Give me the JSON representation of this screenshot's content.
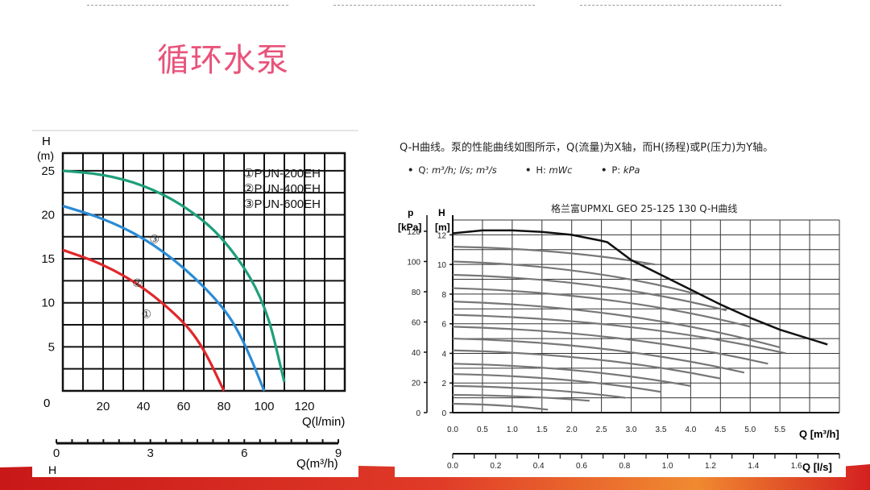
{
  "slide_title": "循环水泵",
  "colors": {
    "title": "#e8537a",
    "pun200": "#e0272b",
    "pun400": "#2a8bd5",
    "pun600": "#1e9f7a",
    "band": "#d32020"
  },
  "right_panel": {
    "intro": "Q-H曲线。泵的性能曲线如图所示，Q(流量)为X轴，而H(扬程)或P(压力)为Y轴。",
    "units": [
      {
        "label": "Q:",
        "value": "m³/h; l/s; m³/s"
      },
      {
        "label": "H:",
        "value": "mWc"
      },
      {
        "label": "P:",
        "value": "kPa"
      }
    ],
    "chart_title": "格兰富UPMXL GEO 25-125 130 Q-H曲线"
  },
  "chart_data": [
    {
      "type": "line",
      "ylabel": "H",
      "yunit": "(m)",
      "xlabel": "Q(l/min)",
      "xlabel2": "Q(m³/h)",
      "xlabel2_prefix": "H",
      "xlim": [
        0,
        140
      ],
      "ylim": [
        0,
        27
      ],
      "xticks": [
        20,
        40,
        60,
        80,
        100,
        120
      ],
      "yticks": [
        5,
        10,
        15,
        20,
        25
      ],
      "origin_label": "0",
      "x2ticks": [
        0,
        3,
        6,
        9
      ],
      "grid": true,
      "legend_position": "top-right",
      "series": [
        {
          "name": "①PUN-200EH",
          "marker": "①",
          "color_key": "pun200",
          "x": [
            0,
            20,
            40,
            60,
            70,
            80
          ],
          "y": [
            16,
            14.4,
            11.8,
            7.9,
            4.8,
            0
          ]
        },
        {
          "name": "②PUN-400EH",
          "marker": "②",
          "color_key": "pun400",
          "x": [
            0,
            20,
            40,
            60,
            80,
            90,
            100
          ],
          "y": [
            21,
            19.6,
            17.4,
            14.1,
            9.5,
            5.6,
            0
          ]
        },
        {
          "name": "③PUN-600EH",
          "marker": "③",
          "color_key": "pun600",
          "x": [
            0,
            20,
            40,
            60,
            80,
            100,
            110
          ],
          "y": [
            25,
            24.6,
            23.4,
            21.1,
            17.4,
            10.5,
            1
          ]
        }
      ]
    },
    {
      "type": "line",
      "ylabel_left": "p",
      "ylabel_left_unit": "[kPa]",
      "ylabel_right": "H",
      "ylabel_right_unit": "[m]",
      "xlabel": "Q [m³/h]",
      "xlabel2": "Q [l/s]",
      "xlim": [
        0,
        6.5
      ],
      "ylim": [
        0,
        13
      ],
      "xticks": [
        "0.0",
        "0.5",
        "1.0",
        "1.5",
        "2.0",
        "2.5",
        "3.0",
        "3.5",
        "4.0",
        "4.5",
        "5.0",
        "5.5"
      ],
      "p_ticks": [
        "0",
        "20",
        "40",
        "60",
        "80",
        "100",
        "120"
      ],
      "h_ticks": [
        "0",
        "2",
        "4",
        "6",
        "8",
        "10",
        "12"
      ],
      "x2ticks": [
        "0.0",
        "0.2",
        "0.4",
        "0.6",
        "0.8",
        "1.0",
        "1.2",
        "1.4",
        "1.6"
      ],
      "grid": true,
      "max_curve": {
        "x": [
          0,
          0.5,
          1.0,
          1.5,
          2.0,
          2.5,
          2.6,
          3.0,
          3.5,
          4.0,
          4.5,
          5.0,
          5.5,
          6.3
        ],
        "y": [
          12.1,
          12.3,
          12.3,
          12.2,
          12.0,
          11.6,
          11.5,
          10.3,
          9.3,
          8.3,
          7.3,
          6.4,
          5.6,
          4.6
        ]
      },
      "speed_curves": [
        {
          "start": 11.2,
          "end_x": 3.4,
          "end_y": 10.0
        },
        {
          "start": 10.2,
          "end_x": 4.1,
          "end_y": 8.0
        },
        {
          "start": 9.3,
          "end_x": 4.6,
          "end_y": 6.9
        },
        {
          "start": 8.4,
          "end_x": 5.0,
          "end_y": 5.8
        },
        {
          "start": 7.5,
          "end_x": 5.5,
          "end_y": 4.4
        },
        {
          "start": 6.6,
          "end_x": 5.6,
          "end_y": 4.0
        },
        {
          "start": 5.8,
          "end_x": 5.3,
          "end_y": 3.3
        },
        {
          "start": 5.0,
          "end_x": 4.9,
          "end_y": 2.7
        },
        {
          "start": 4.2,
          "end_x": 4.5,
          "end_y": 2.3
        },
        {
          "start": 3.3,
          "end_x": 4.0,
          "end_y": 1.8
        },
        {
          "start": 2.6,
          "end_x": 3.5,
          "end_y": 1.4
        },
        {
          "start": 1.8,
          "end_x": 2.9,
          "end_y": 1.0
        },
        {
          "start": 1.2,
          "end_x": 2.3,
          "end_y": 0.8
        },
        {
          "start": 0.6,
          "end_x": 1.6,
          "end_y": 0.2
        }
      ]
    }
  ]
}
